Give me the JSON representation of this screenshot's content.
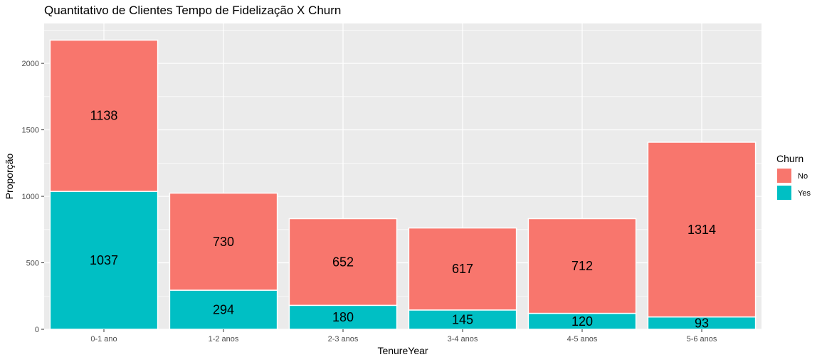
{
  "chart_data": {
    "type": "bar",
    "stacked": true,
    "title": "Quantitativo de Clientes Tempo de Fidelização X Churn",
    "xlabel": "TenureYear",
    "ylabel": "Proporção",
    "categories": [
      "0-1 ano",
      "1-2 anos",
      "2-3 anos",
      "3-4 anos",
      "4-5 anos",
      "5-6 anos"
    ],
    "series": [
      {
        "name": "Yes",
        "color": "#00BFC4",
        "values": [
          1037,
          294,
          180,
          145,
          120,
          93
        ]
      },
      {
        "name": "No",
        "color": "#F8766D",
        "values": [
          1138,
          730,
          652,
          617,
          712,
          1314
        ]
      }
    ],
    "ylim": [
      0,
      2300
    ],
    "yticks": [
      0,
      500,
      1000,
      1500,
      2000
    ],
    "grid": true,
    "legend": {
      "title": "Churn",
      "placement": "right",
      "entries": [
        {
          "label": "No",
          "color": "#F8766D"
        },
        {
          "label": "Yes",
          "color": "#00BFC4"
        }
      ]
    }
  }
}
